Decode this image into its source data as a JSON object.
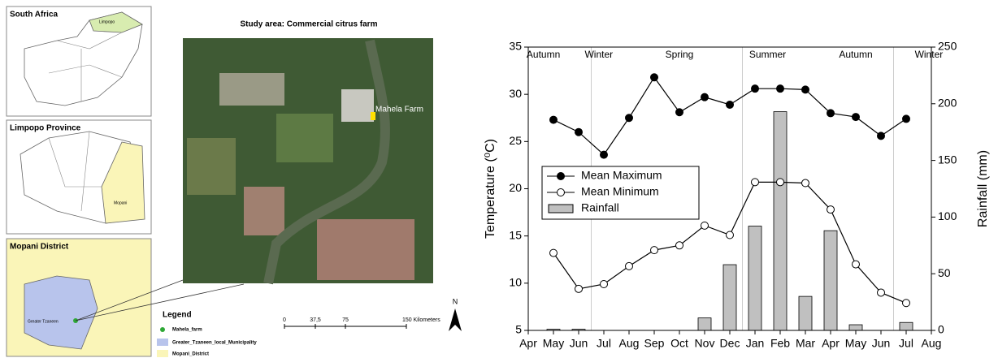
{
  "maps": {
    "south_africa": {
      "title": "South Africa",
      "region": "Limpopo"
    },
    "province": {
      "title": "Limpopo Province",
      "region": "Mopani"
    },
    "district": {
      "title": "Mopani District",
      "region": "Greater Tzaneen"
    },
    "study_area": {
      "title": "Study area: Commercial citrus farm",
      "farm": "Mahela Farm"
    },
    "legend": {
      "title": "Legend",
      "items": [
        "Mahela_farm",
        "Greater_Tzaneen_local_Municipality",
        "Mopani_District"
      ]
    },
    "scale": {
      "labels": [
        "0",
        "37,5",
        "75",
        "150 Kilometers"
      ]
    },
    "north": "N"
  },
  "chart_data": {
    "type": "combo",
    "ylabel": "Temperature (⁰C)",
    "y2label": "Rainfall (mm)",
    "categories": [
      "Apr",
      "May",
      "Jun",
      "Jul",
      "Aug",
      "Sep",
      "Oct",
      "Nov",
      "Dec",
      "Jan",
      "Feb",
      "Mar",
      "Apr",
      "May",
      "Jun",
      "Jul",
      "Aug"
    ],
    "ylim": [
      5,
      35
    ],
    "yticks": [
      5,
      10,
      15,
      20,
      25,
      30,
      35
    ],
    "y2lim": [
      0,
      250
    ],
    "y2ticks": [
      0,
      50,
      100,
      150,
      200,
      250
    ],
    "annotations": [
      "Autumn",
      "Winter",
      "Spring",
      "Summer",
      "Autumn",
      "Winter"
    ],
    "series": [
      {
        "name": "Mean Maximum",
        "type": "line",
        "color": "#000000",
        "marker": "filled",
        "values": [
          null,
          27.3,
          26.0,
          23.6,
          27.5,
          31.8,
          28.1,
          29.7,
          28.9,
          30.6,
          30.6,
          30.5,
          28.0,
          27.6,
          25.6,
          27.4,
          null
        ]
      },
      {
        "name": "Mean Minimum",
        "type": "line",
        "color": "#000000",
        "marker": "open",
        "values": [
          null,
          13.2,
          9.4,
          9.9,
          11.8,
          13.5,
          14.0,
          16.1,
          15.1,
          20.7,
          20.7,
          20.6,
          17.8,
          12.0,
          9.0,
          7.9,
          null
        ]
      },
      {
        "name": "Rainfall",
        "type": "bar",
        "axis": "y2",
        "color": "#c0c0c0",
        "values": [
          null,
          1,
          1,
          0,
          0,
          0,
          0,
          11,
          58,
          92,
          193,
          30,
          88,
          5,
          0,
          7,
          null
        ]
      }
    ]
  }
}
